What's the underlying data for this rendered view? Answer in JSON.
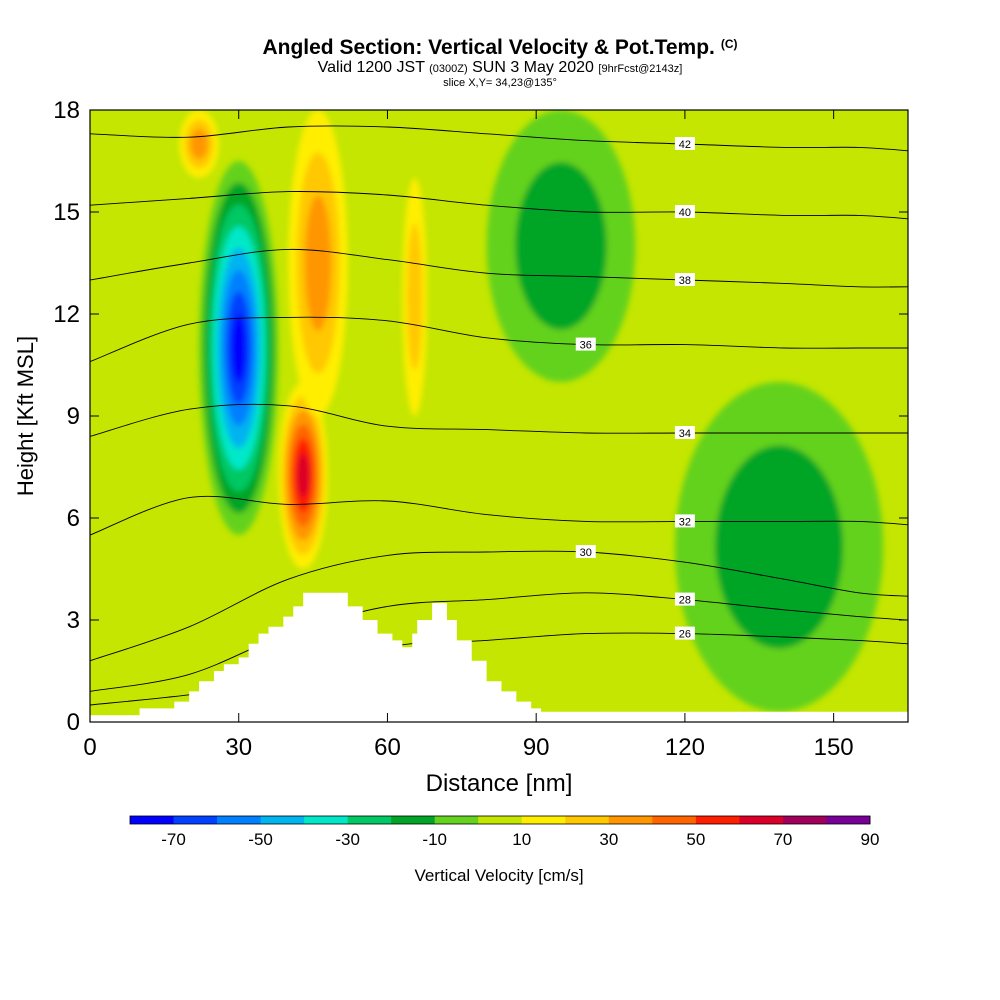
{
  "header": {
    "title": "Angled Section: Vertical Velocity & Pot.Temp.",
    "title_mark": "(C)",
    "valid_prefix": "Valid 1200 JST",
    "valid_utc": "(0300Z)",
    "valid_date": "SUN 3 May 2020",
    "forecast": "[9hrFcst@2143z]",
    "slice": "slice X,Y= 34,23@135°"
  },
  "chart_data": {
    "type": "heatmap",
    "title": "Angled Section: Vertical Velocity & Pot.Temp.",
    "xlabel": "Distance [nm]",
    "ylabel": "Height [Kft MSL]",
    "xlim": [
      0,
      165
    ],
    "ylim": [
      0,
      18
    ],
    "x_ticks": [
      "0",
      "30",
      "60",
      "90",
      "120",
      "150"
    ],
    "y_ticks": [
      "0",
      "3",
      "6",
      "9",
      "12",
      "15",
      "18"
    ],
    "colorbar": {
      "label": "Vertical Velocity [cm/s]",
      "ticks": [
        "-70",
        "-50",
        "-30",
        "-10",
        "10",
        "30",
        "50",
        "70",
        "90"
      ],
      "bins": [
        {
          "from": -80,
          "to": -70,
          "color": "#0000ff"
        },
        {
          "from": -70,
          "to": -60,
          "color": "#0040ff"
        },
        {
          "from": -60,
          "to": -50,
          "color": "#0080ff"
        },
        {
          "from": -50,
          "to": -40,
          "color": "#00b4f0"
        },
        {
          "from": -40,
          "to": -30,
          "color": "#00e8c8"
        },
        {
          "from": -30,
          "to": -20,
          "color": "#00c864"
        },
        {
          "from": -20,
          "to": -10,
          "color": "#00a528"
        },
        {
          "from": -10,
          "to": 0,
          "color": "#64d21e"
        },
        {
          "from": 0,
          "to": 10,
          "color": "#c4e600"
        },
        {
          "from": 10,
          "to": 20,
          "color": "#ffee00"
        },
        {
          "from": 20,
          "to": 30,
          "color": "#ffc800"
        },
        {
          "from": 30,
          "to": 40,
          "color": "#ff9600"
        },
        {
          "from": 40,
          "to": 50,
          "color": "#ff6400"
        },
        {
          "from": 50,
          "to": 60,
          "color": "#ff1e00"
        },
        {
          "from": 60,
          "to": 70,
          "color": "#dc0028"
        },
        {
          "from": 70,
          "to": 80,
          "color": "#a0005a"
        },
        {
          "from": 80,
          "to": 90,
          "color": "#780096"
        }
      ]
    },
    "background_color": "#c4e600",
    "velocity_features": [
      {
        "name": "downdraft_core",
        "x": [
          22,
          38
        ],
        "y": [
          5.5,
          16.5
        ],
        "peak": -70
      },
      {
        "name": "updraft_core",
        "x": [
          38,
          48
        ],
        "y": [
          4.5,
          10
        ],
        "peak": 60
      },
      {
        "name": "updraft_band_upper",
        "x": [
          40,
          52
        ],
        "y": [
          9,
          18
        ],
        "peak": 30
      },
      {
        "name": "updraft_top_left",
        "x": [
          18,
          26
        ],
        "y": [
          16,
          18
        ],
        "peak": 30
      },
      {
        "name": "updraft_band_65",
        "x": [
          63,
          68
        ],
        "y": [
          9,
          16
        ],
        "peak": 20
      },
      {
        "name": "subsidence_region_120",
        "x": [
          118,
          160
        ],
        "y": [
          0.3,
          10
        ],
        "peak": -10
      },
      {
        "name": "subsidence_region_90",
        "x": [
          80,
          110
        ],
        "y": [
          10,
          18
        ],
        "peak": -10
      }
    ],
    "theta_contours": [
      {
        "label": "26",
        "y": [
          0.5,
          0.8,
          1.2,
          2.2,
          2.4,
          2.6,
          2.6,
          2.5,
          2.4,
          2.3
        ]
      },
      {
        "label": "28",
        "y": [
          0.9,
          1.4,
          2.6,
          3.4,
          3.6,
          3.8,
          3.6,
          3.3,
          3.1,
          3.0
        ]
      },
      {
        "label": "30",
        "y": [
          1.8,
          2.8,
          4.2,
          4.9,
          5.0,
          5.0,
          4.7,
          4.2,
          3.8,
          3.7
        ]
      },
      {
        "label": "32",
        "y": [
          5.5,
          6.6,
          6.4,
          6.5,
          6.1,
          5.9,
          5.9,
          5.9,
          5.9,
          5.8
        ]
      },
      {
        "label": "34",
        "y": [
          8.4,
          9.2,
          9.3,
          8.7,
          8.6,
          8.5,
          8.5,
          8.5,
          8.5,
          8.5
        ]
      },
      {
        "label": "36",
        "y": [
          10.6,
          11.7,
          11.9,
          11.8,
          11.3,
          11.1,
          11.1,
          11.0,
          11.0,
          11.0
        ]
      },
      {
        "label": "38",
        "y": [
          13.0,
          13.5,
          13.9,
          13.6,
          13.2,
          13.1,
          13.0,
          12.9,
          12.8,
          12.8
        ]
      },
      {
        "label": "40",
        "y": [
          15.2,
          15.4,
          15.6,
          15.5,
          15.2,
          15.0,
          15.0,
          14.9,
          14.9,
          14.8
        ]
      },
      {
        "label": "42",
        "y": [
          17.3,
          17.2,
          17.5,
          17.5,
          17.3,
          17.1,
          17.0,
          16.9,
          16.9,
          16.8
        ]
      }
    ],
    "contour_x": [
      0,
      20,
      40,
      60,
      80,
      100,
      120,
      140,
      155,
      165
    ],
    "terrain_steps": [
      [
        10,
        0.4
      ],
      [
        17,
        0.6
      ],
      [
        20,
        0.9
      ],
      [
        22,
        1.2
      ],
      [
        25,
        1.5
      ],
      [
        27,
        1.7
      ],
      [
        30,
        1.9
      ],
      [
        32,
        2.3
      ],
      [
        34,
        2.6
      ],
      [
        36,
        2.8
      ],
      [
        39,
        3.1
      ],
      [
        41,
        3.4
      ],
      [
        43,
        3.8
      ],
      [
        47,
        3.8
      ],
      [
        52,
        3.4
      ],
      [
        55,
        3.0
      ],
      [
        58,
        2.6
      ],
      [
        61,
        2.4
      ],
      [
        63,
        2.2
      ],
      [
        65,
        2.6
      ],
      [
        66,
        3.0
      ],
      [
        69,
        3.5
      ],
      [
        72,
        3.0
      ],
      [
        74,
        2.4
      ],
      [
        77,
        1.8
      ],
      [
        80,
        1.2
      ],
      [
        83,
        0.9
      ],
      [
        86,
        0.6
      ],
      [
        89,
        0.4
      ],
      [
        91,
        0.3
      ],
      [
        165,
        0.3
      ]
    ]
  }
}
